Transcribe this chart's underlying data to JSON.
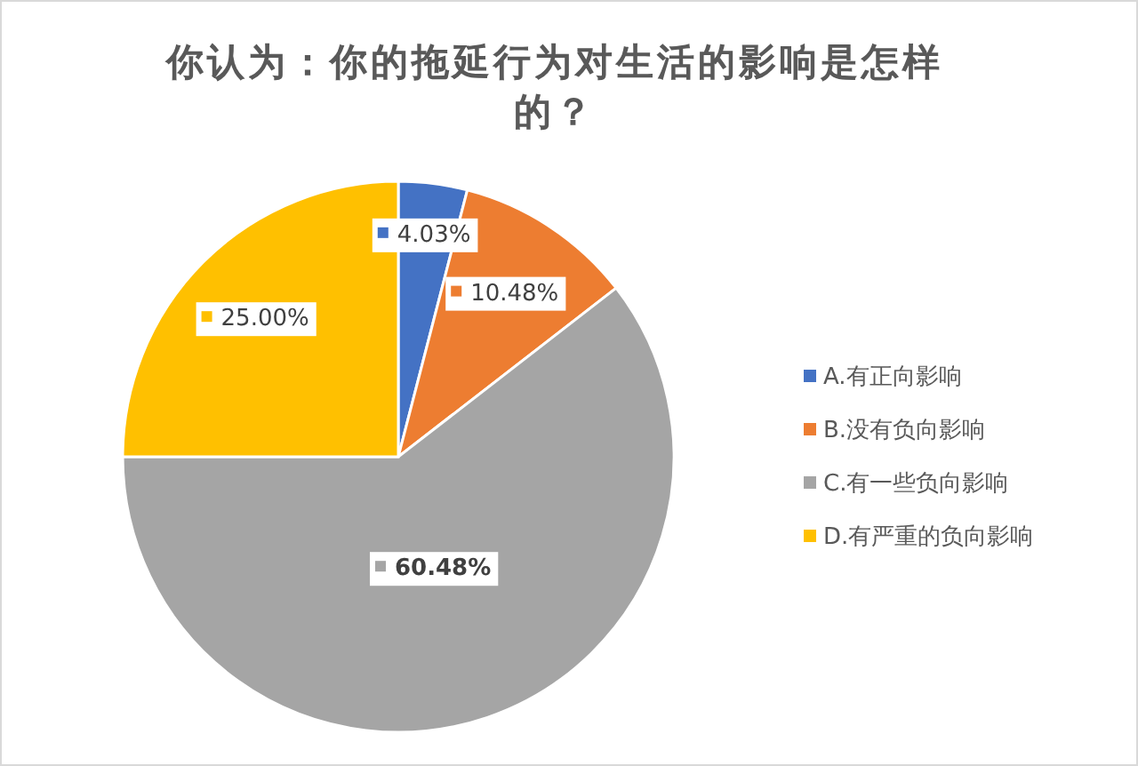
{
  "chart_data": {
    "type": "pie",
    "title": "你认为：你的拖延行为对生活的影响是怎样的？",
    "categories": [
      "A.有正向影响",
      "B.没有负向影响",
      "C.有一些负向影响",
      "D.有严重的负向影响"
    ],
    "values": [
      4.03,
      10.48,
      60.48,
      25.0
    ],
    "colors": [
      "#4472c4",
      "#ed7d31",
      "#a5a5a5",
      "#ffc000"
    ],
    "value_labels": [
      "4.03%",
      "10.48%",
      "60.48%",
      "25.00%"
    ],
    "legend": "right"
  }
}
